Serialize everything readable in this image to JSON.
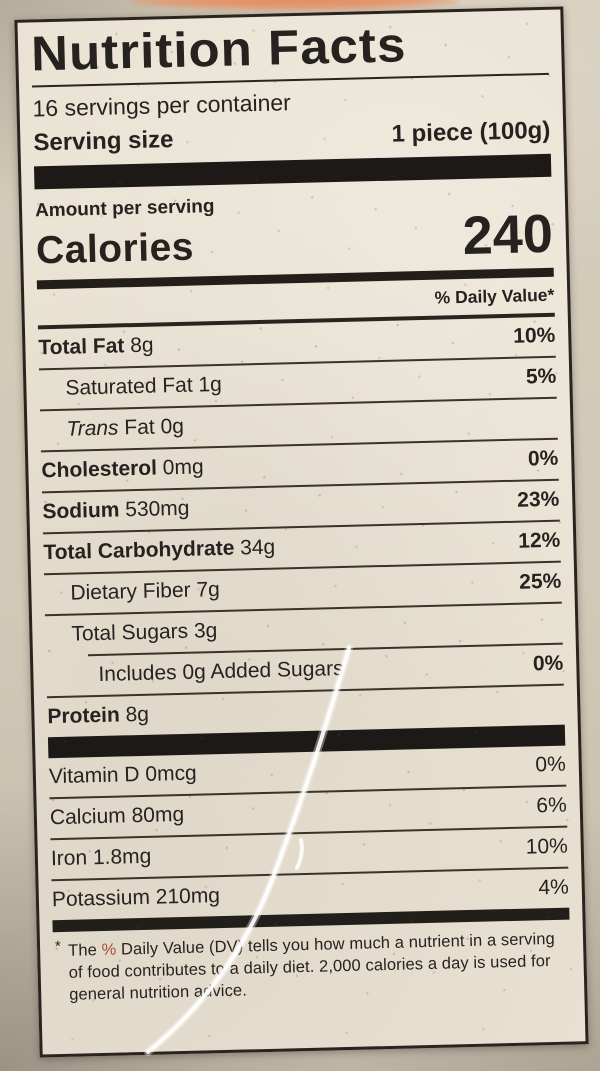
{
  "label": {
    "title": "Nutrition Facts",
    "servings_per_container": "16 servings per container",
    "serving_size_label": "Serving size",
    "serving_size_value": "1 piece (100g)",
    "amount_per_serving": "Amount per serving",
    "calories_label": "Calories",
    "calories_value": "240",
    "daily_value_header": "% Daily Value*",
    "nutrients": [
      {
        "iname": "",
        "name": "Total Fat",
        "amount": "8g",
        "dv": "10%",
        "bold": true,
        "indent": 0
      },
      {
        "iname": "",
        "name": "Saturated Fat",
        "amount": "1g",
        "dv": "5%",
        "bold": false,
        "indent": 1
      },
      {
        "iname": "Trans",
        "name": " Fat",
        "amount": "0g",
        "dv": "",
        "bold": false,
        "indent": 1
      },
      {
        "iname": "",
        "name": "Cholesterol",
        "amount": "0mg",
        "dv": "0%",
        "bold": true,
        "indent": 0
      },
      {
        "iname": "",
        "name": "Sodium",
        "amount": "530mg",
        "dv": "23%",
        "bold": true,
        "indent": 0
      },
      {
        "iname": "",
        "name": "Total Carbohydrate",
        "amount": "34g",
        "dv": "12%",
        "bold": true,
        "indent": 0
      },
      {
        "iname": "",
        "name": "Dietary Fiber",
        "amount": "7g",
        "dv": "25%",
        "bold": false,
        "indent": 1
      },
      {
        "iname": "",
        "name": "Total Sugars",
        "amount": "3g",
        "dv": "",
        "bold": false,
        "indent": 1
      },
      {
        "iname": "",
        "name": "Includes 0g Added Sugars",
        "amount": "",
        "dv": "0%",
        "bold": false,
        "indent": 2
      },
      {
        "iname": "",
        "name": "Protein",
        "amount": "8g",
        "dv": "",
        "bold": true,
        "indent": 0
      }
    ],
    "micronutrients": [
      {
        "name": "Vitamin D",
        "amount": "0mcg",
        "dv": "0%"
      },
      {
        "name": "Calcium",
        "amount": "80mg",
        "dv": "6%"
      },
      {
        "name": "Iron",
        "amount": "1.8mg",
        "dv": "10%"
      },
      {
        "name": "Potassium",
        "amount": "210mg",
        "dv": "4%"
      }
    ],
    "footnote": {
      "marker": "*",
      "text_before_pct": "The ",
      "pct": "%",
      "text_after_pct": " Daily Value (DV) tells you how much a nutrient in a serving of food contributes to a daily diet. 2,000 calories a day is used for general nutrition advice."
    }
  },
  "colors": {
    "label_background": "#e9e2d2",
    "bag_background": "#d2c8b7",
    "ink": "#262220",
    "bag_print_accent": "#e2915f",
    "footnote_pct_tint": "#a84c40"
  }
}
